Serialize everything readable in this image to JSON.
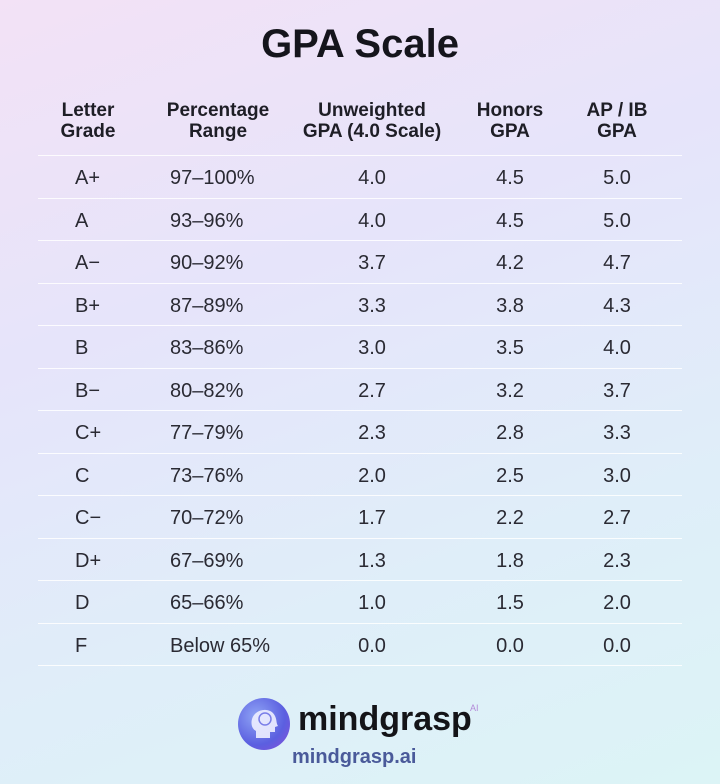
{
  "title": "GPA Scale",
  "headers": [
    "Letter Grade",
    "Percentage Range",
    "Unweighted GPA (4.0 Scale)",
    "Honors GPA",
    "AP / IB GPA"
  ],
  "header_lines": [
    [
      "Letter",
      "Grade"
    ],
    [
      "Percentage",
      "Range"
    ],
    [
      "Unweighted",
      "GPA (4.0 Scale)"
    ],
    [
      "Honors",
      "GPA"
    ],
    [
      "AP / IB",
      "GPA"
    ]
  ],
  "rows": [
    [
      "A+",
      "97–100%",
      "4.0",
      "4.5",
      "5.0"
    ],
    [
      "A",
      "93–96%",
      "4.0",
      "4.5",
      "5.0"
    ],
    [
      "A−",
      "90–92%",
      "3.7",
      "4.2",
      "4.7"
    ],
    [
      "B+",
      "87–89%",
      "3.3",
      "3.8",
      "4.3"
    ],
    [
      "B",
      "83–86%",
      "3.0",
      "3.5",
      "4.0"
    ],
    [
      "B−",
      "80–82%",
      "2.7",
      "3.2",
      "3.7"
    ],
    [
      "C+",
      "77–79%",
      "2.3",
      "2.8",
      "3.3"
    ],
    [
      "C",
      "73–76%",
      "2.0",
      "2.5",
      "3.0"
    ],
    [
      "C−",
      "70–72%",
      "1.7",
      "2.2",
      "2.7"
    ],
    [
      "D+",
      "67–69%",
      "1.3",
      "1.8",
      "2.3"
    ],
    [
      "D",
      "65–66%",
      "1.0",
      "1.5",
      "2.0"
    ],
    [
      "F",
      "Below 65%",
      "0.0",
      "0.0",
      "0.0"
    ]
  ],
  "footer": {
    "brand": "mindgrasp",
    "brand_sup": "AI",
    "url": "mindgrasp.ai",
    "logo_icon": "brain-head-icon"
  }
}
